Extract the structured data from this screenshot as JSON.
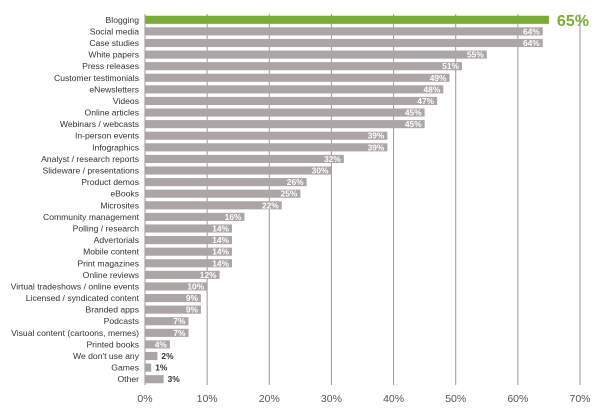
{
  "chart_data": {
    "type": "bar",
    "orientation": "horizontal",
    "categories": [
      "Blogging",
      "Social media",
      "Case studies",
      "White papers",
      "Press releases",
      "Customer testimonials",
      "eNewsletters",
      "Videos",
      "Online articles",
      "Webinars / webcasts",
      "In-person events",
      "Infographics",
      "Analyst / research reports",
      "Slideware / presentations",
      "Product demos",
      "eBooks",
      "Microsites",
      "Community management",
      "Polling / research",
      "Advertorials",
      "Mobile content",
      "Print magazines",
      "Online reviews",
      "Virtual tradeshows / online events",
      "Licensed / syndicated content",
      "Branded apps",
      "Podcasts",
      "Visual content (cartoons, memes)",
      "Printed books",
      "We don't use any",
      "Games",
      "Other"
    ],
    "values": [
      65,
      64,
      64,
      55,
      51,
      49,
      48,
      47,
      45,
      45,
      39,
      39,
      32,
      30,
      26,
      25,
      22,
      16,
      14,
      14,
      14,
      14,
      12,
      10,
      9,
      9,
      7,
      7,
      4,
      2,
      1,
      3
    ],
    "value_labels": [
      "65%",
      "64%",
      "64%",
      "55%",
      "51%",
      "49%",
      "48%",
      "47%",
      "45%",
      "45%",
      "39%",
      "39%",
      "32%",
      "30%",
      "26%",
      "25%",
      "22%",
      "16%",
      "14%",
      "14%",
      "14%",
      "14%",
      "12%",
      "10%",
      "9%",
      "9%",
      "7%",
      "7%",
      "4%",
      "2%",
      "1%",
      "3%"
    ],
    "highlight_index": 0,
    "xlim": [
      0,
      70
    ],
    "xticks": [
      0,
      10,
      20,
      30,
      40,
      50,
      60,
      70
    ],
    "xtick_labels": [
      "0%",
      "10%",
      "20%",
      "30%",
      "40%",
      "50%",
      "60%",
      "70%"
    ],
    "grid": "vertical",
    "title": "",
    "xlabel": "",
    "ylabel": "",
    "colors": {
      "bar": "#aba5a5",
      "highlight": "#7aad35",
      "label_inside": "#ffffff",
      "label_outside": "#333333",
      "highlight_label": "#7aad35",
      "grid": "#9a9a9a"
    }
  }
}
